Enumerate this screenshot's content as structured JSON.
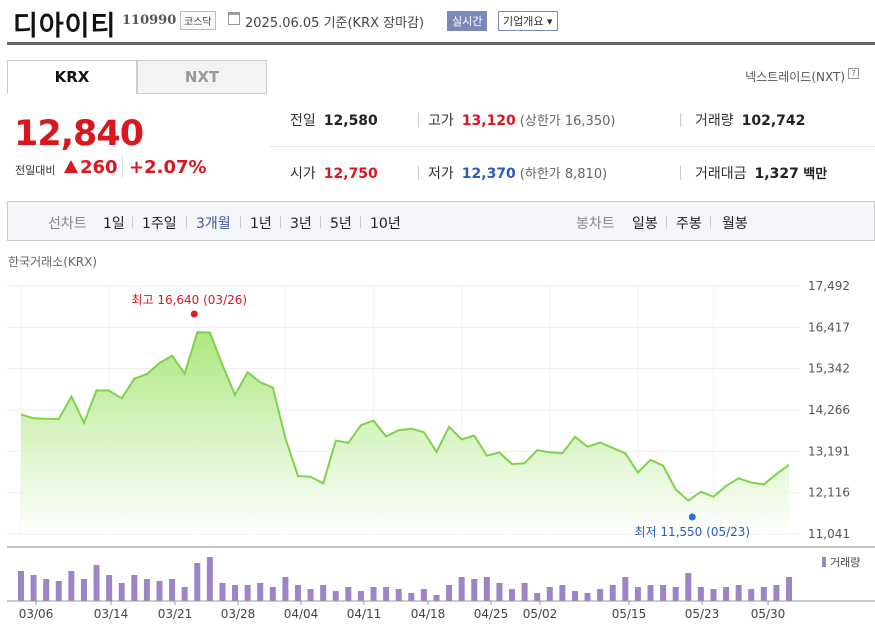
{
  "header": {
    "name": "디아이티",
    "code": "110990",
    "market": "코스닥",
    "date": "2025.06.05  기준(KRX 장마감)",
    "realtime": "실시간",
    "corp_info": "기업개요 ▾"
  },
  "tabs": {
    "krx": "KRX",
    "nxt": "NXT",
    "nxt_link": "넥스트레이드(NXT)",
    "help": "?"
  },
  "quote": {
    "price": "12,840",
    "change_label": "전일대비",
    "change": "260",
    "change_pct": "+2.07%"
  },
  "stats": {
    "prev_label": "전일",
    "prev": "12,580",
    "high_label": "고가",
    "high": "13,120",
    "upper_limit": "(상한가 16,350)",
    "volume_label": "거래량",
    "volume": "102,742",
    "open_label": "시가",
    "open": "12,750",
    "low_label": "저가",
    "low": "12,370",
    "lower_limit": "(하한가 8,810)",
    "amount_label": "거래대금",
    "amount": "1,327",
    "amount_unit": "백만"
  },
  "controls": {
    "line_label": "선차트",
    "periods": [
      "1일",
      "1주일",
      "3개월",
      "1년",
      "3년",
      "5년",
      "10년"
    ],
    "selected_period": "3개월",
    "candle_label": "봉차트",
    "candles": [
      "일봉",
      "주봉",
      "월봉"
    ]
  },
  "source_label": "한국거래소(KRX)",
  "colors": {
    "up": "#d8171f",
    "down": "#2a5bc2",
    "accent": "#3b56a6",
    "fill": "#b7ec8a",
    "volume": "#9d84c6"
  },
  "chart_data": {
    "type": "area",
    "y_ticks": [
      "17,492",
      "16,417",
      "15,342",
      "14,266",
      "13,191",
      "12,116",
      "11,041"
    ],
    "ylim": [
      11041,
      17492
    ],
    "x_ticks": [
      "03/06",
      "03/14",
      "03/21",
      "03/28",
      "04/04",
      "04/11",
      "04/18",
      "04/25",
      "05/02",
      "05/15",
      "05/23",
      "05/30"
    ],
    "max_label": "최고 16,640 (03/26)",
    "min_label": "최저 11,550 (05/23)",
    "volume_legend": "거래량",
    "series": [
      {
        "values": [
          14150,
          14050,
          14040,
          14030,
          14620,
          13930,
          14780,
          14770,
          14570,
          15080,
          15200,
          15490,
          15680,
          15210,
          16290,
          16280,
          15440,
          14660,
          15250,
          14990,
          14850,
          13530,
          12550,
          12530,
          12360,
          13470,
          13410,
          13870,
          13990,
          13580,
          13740,
          13780,
          13690,
          13180,
          13830,
          13500,
          13600,
          13080,
          13160,
          12860,
          12880,
          13220,
          13170,
          13140,
          13570,
          13310,
          13420,
          13280,
          13140,
          12640,
          12970,
          12820,
          12200,
          11910,
          12140,
          12010,
          12290,
          12490,
          12380,
          12330,
          12600,
          12840
        ]
      }
    ],
    "volume": [
      30,
      26,
      22,
      20,
      30,
      22,
      36,
      26,
      18,
      26,
      22,
      20,
      22,
      14,
      38,
      44,
      18,
      16,
      16,
      18,
      14,
      24,
      16,
      12,
      16,
      10,
      14,
      10,
      14,
      14,
      12,
      8,
      12,
      6,
      16,
      24,
      22,
      24,
      18,
      12,
      18,
      8,
      14,
      16,
      10,
      8,
      12,
      16,
      24,
      14,
      16,
      16,
      14,
      28,
      14,
      12,
      14,
      16,
      12,
      14,
      16,
      24
    ]
  }
}
